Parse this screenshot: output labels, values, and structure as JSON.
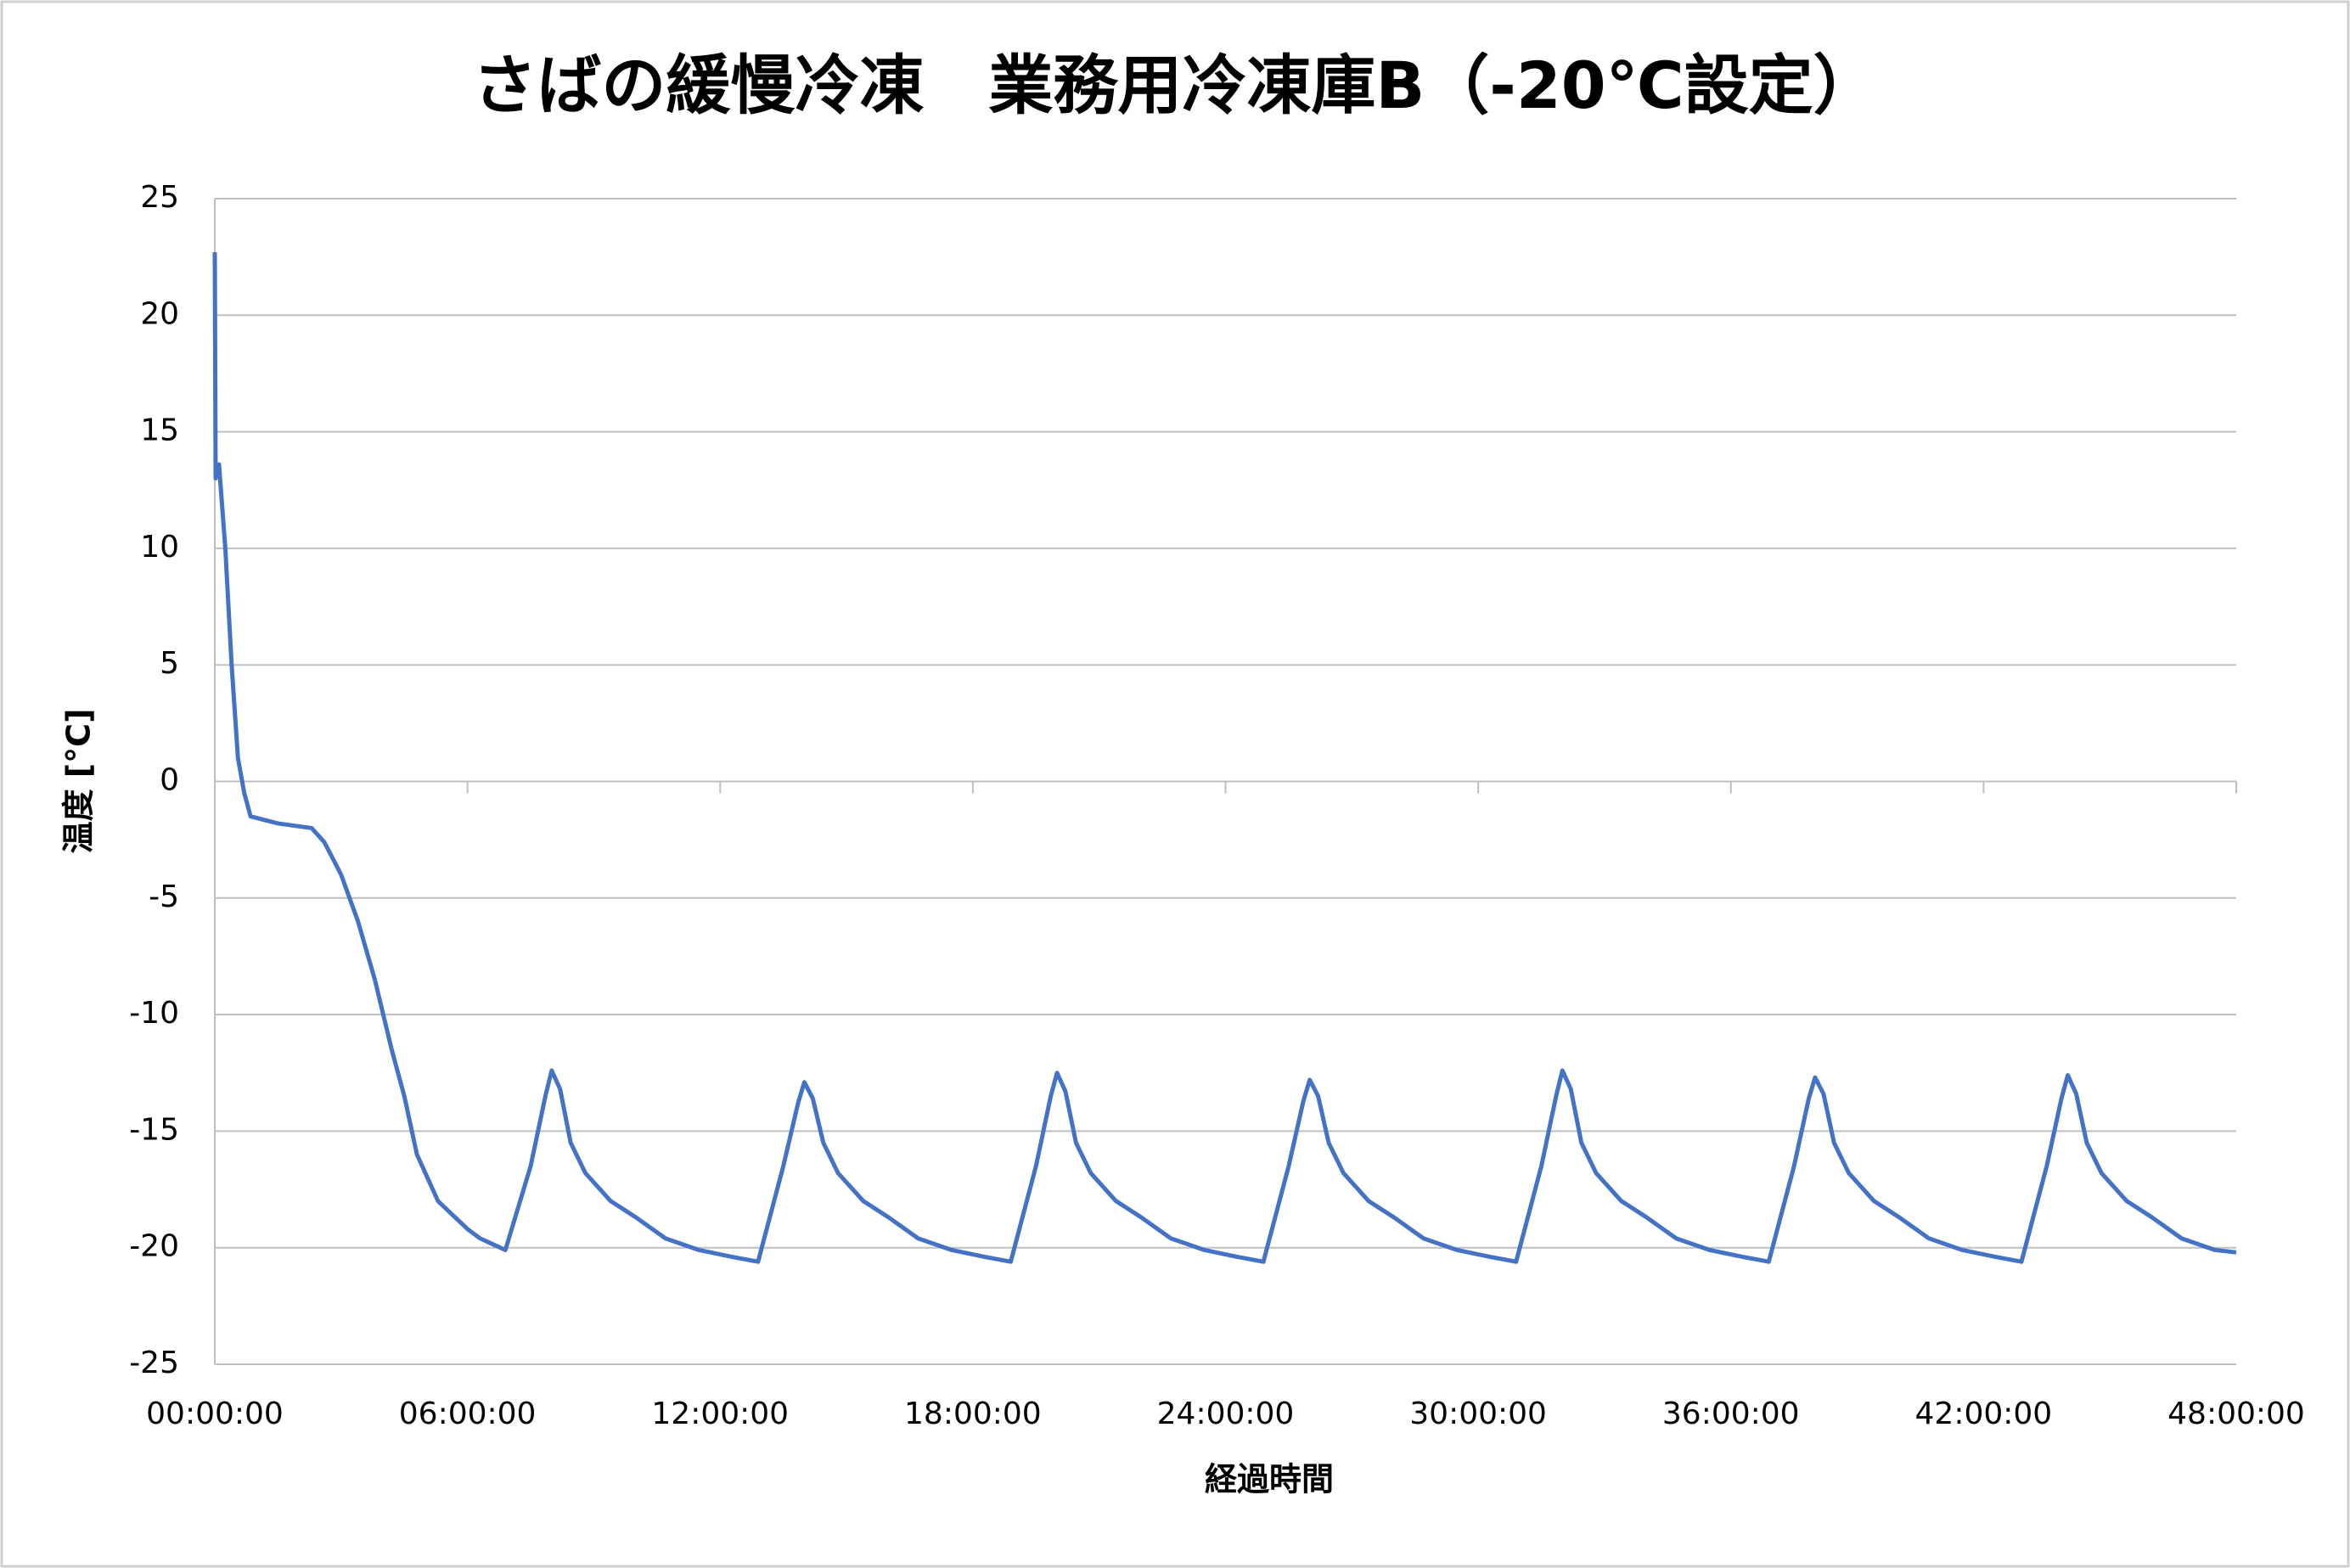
{
  "chart_data": {
    "type": "line",
    "title": "さばの緩慢冷凍　業務用冷凍庫B（-20℃設定）",
    "x_label": "経過時間",
    "y_label": "温度 [°C]",
    "xlim": [
      0,
      48
    ],
    "xticks": [
      {
        "value": 0,
        "label": "00:00:00"
      },
      {
        "value": 6,
        "label": "06:00:00"
      },
      {
        "value": 12,
        "label": "12:00:00"
      },
      {
        "value": 18,
        "label": "18:00:00"
      },
      {
        "value": 24,
        "label": "24:00:00"
      },
      {
        "value": 30,
        "label": "30:00:00"
      },
      {
        "value": 36,
        "label": "36:00:00"
      },
      {
        "value": 42,
        "label": "42:00:00"
      },
      {
        "value": 48,
        "label": "48:00:00"
      }
    ],
    "ylim": [
      -25,
      25
    ],
    "yticks": [
      -25,
      -20,
      -15,
      -10,
      -5,
      0,
      5,
      10,
      15,
      20,
      25
    ],
    "grid": true,
    "color": "#4472c4",
    "x": [
      0,
      0.02,
      0.1,
      0.25,
      0.4,
      0.55,
      0.7,
      0.85,
      1.5,
      2.3,
      2.6,
      3,
      3.4,
      3.8,
      4.2,
      4.5,
      4.8,
      5.3,
      6,
      6.3,
      6.9,
      7.5,
      7.85,
      8,
      8.2,
      8.45,
      8.8,
      9.4,
      10,
      10.7,
      11.5,
      12.3,
      12.9,
      13.5,
      13.85,
      14,
      14.2,
      14.45,
      14.8,
      15.4,
      16,
      16.7,
      17.5,
      18.3,
      18.9,
      19.5,
      19.85,
      20,
      20.2,
      20.45,
      20.8,
      21.4,
      22,
      22.7,
      23.5,
      24.3,
      24.9,
      25.5,
      25.85,
      26,
      26.2,
      26.45,
      26.8,
      27.4,
      28,
      28.7,
      29.5,
      30.3,
      30.9,
      31.5,
      31.85,
      32,
      32.2,
      32.45,
      32.8,
      33.4,
      34,
      34.7,
      35.5,
      36.3,
      36.9,
      37.5,
      37.85,
      38,
      38.2,
      38.45,
      38.8,
      39.4,
      40,
      40.7,
      41.5,
      42.3,
      42.9,
      43.5,
      43.85,
      44,
      44.2,
      44.45,
      44.8,
      45.4,
      46,
      46.7,
      47.5,
      48
    ],
    "values": [
      22.7,
      13,
      13.6,
      10,
      5,
      1,
      -0.5,
      -1.5,
      -1.8,
      -2,
      -2.6,
      -4,
      -6,
      -8.5,
      -11.5,
      -13.5,
      -16,
      -18,
      -19.2,
      -19.6,
      -20.1,
      -16.5,
      -13.5,
      -12.4,
      -13.2,
      -15.5,
      -16.8,
      -18,
      -18.7,
      -19.6,
      -20.1,
      -20.4,
      -20.6,
      -16.5,
      -13.8,
      -12.9,
      -13.6,
      -15.5,
      -16.8,
      -18,
      -18.7,
      -19.6,
      -20.1,
      -20.4,
      -20.6,
      -16.5,
      -13.5,
      -12.5,
      -13.3,
      -15.5,
      -16.8,
      -18,
      -18.7,
      -19.6,
      -20.1,
      -20.4,
      -20.6,
      -16.5,
      -13.7,
      -12.8,
      -13.5,
      -15.5,
      -16.8,
      -18,
      -18.7,
      -19.6,
      -20.1,
      -20.4,
      -20.6,
      -16.5,
      -13.5,
      -12.4,
      -13.2,
      -15.5,
      -16.8,
      -18,
      -18.7,
      -19.6,
      -20.1,
      -20.4,
      -20.6,
      -16.5,
      -13.6,
      -12.7,
      -13.4,
      -15.5,
      -16.8,
      -18,
      -18.7,
      -19.6,
      -20.1,
      -20.4,
      -20.6,
      -16.5,
      -13.6,
      -12.6,
      -13.4,
      -15.5,
      -16.8,
      -18,
      -18.7,
      -19.6,
      -20.1,
      -20.2
    ]
  }
}
